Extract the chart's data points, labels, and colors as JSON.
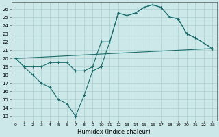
{
  "xlabel": "Humidex (Indice chaleur)",
  "bg_color": "#cce8e8",
  "line_color": "#1a6b6b",
  "grid_color": "#aacfcf",
  "xlim": [
    -0.5,
    23.5
  ],
  "ylim": [
    12.5,
    26.8
  ],
  "yticks": [
    13,
    14,
    15,
    16,
    17,
    18,
    19,
    20,
    21,
    22,
    23,
    24,
    25,
    26
  ],
  "xticks": [
    0,
    1,
    2,
    3,
    4,
    5,
    6,
    7,
    8,
    9,
    10,
    11,
    12,
    13,
    14,
    15,
    16,
    17,
    18,
    19,
    20,
    21,
    22,
    23
  ],
  "line1_x": [
    0,
    1,
    2,
    3,
    4,
    5,
    6,
    7,
    8,
    9,
    10,
    11,
    12,
    13,
    14,
    15,
    16,
    17,
    18,
    19,
    20,
    21,
    23
  ],
  "line1_y": [
    20,
    19,
    18,
    17,
    16.5,
    15,
    14.5,
    13,
    15.5,
    18.5,
    19,
    22,
    25.5,
    25.2,
    25.5,
    26.2,
    26.5,
    26.2,
    25.0,
    24.8,
    23.0,
    22.5,
    21.2
  ],
  "line2_x": [
    0,
    1,
    2,
    3,
    4,
    5,
    6,
    7,
    8,
    9,
    10,
    11,
    12,
    13,
    14,
    15,
    16,
    17,
    18,
    19,
    20,
    21,
    23
  ],
  "line2_y": [
    20,
    19,
    19,
    19,
    19.5,
    19.5,
    19.5,
    18.5,
    18.5,
    19,
    22,
    22,
    25.5,
    25.2,
    25.5,
    26.2,
    26.5,
    26.2,
    25.0,
    24.8,
    23.0,
    22.5,
    21.2
  ],
  "line3_x": [
    0,
    23
  ],
  "line3_y": [
    20.0,
    21.2
  ]
}
